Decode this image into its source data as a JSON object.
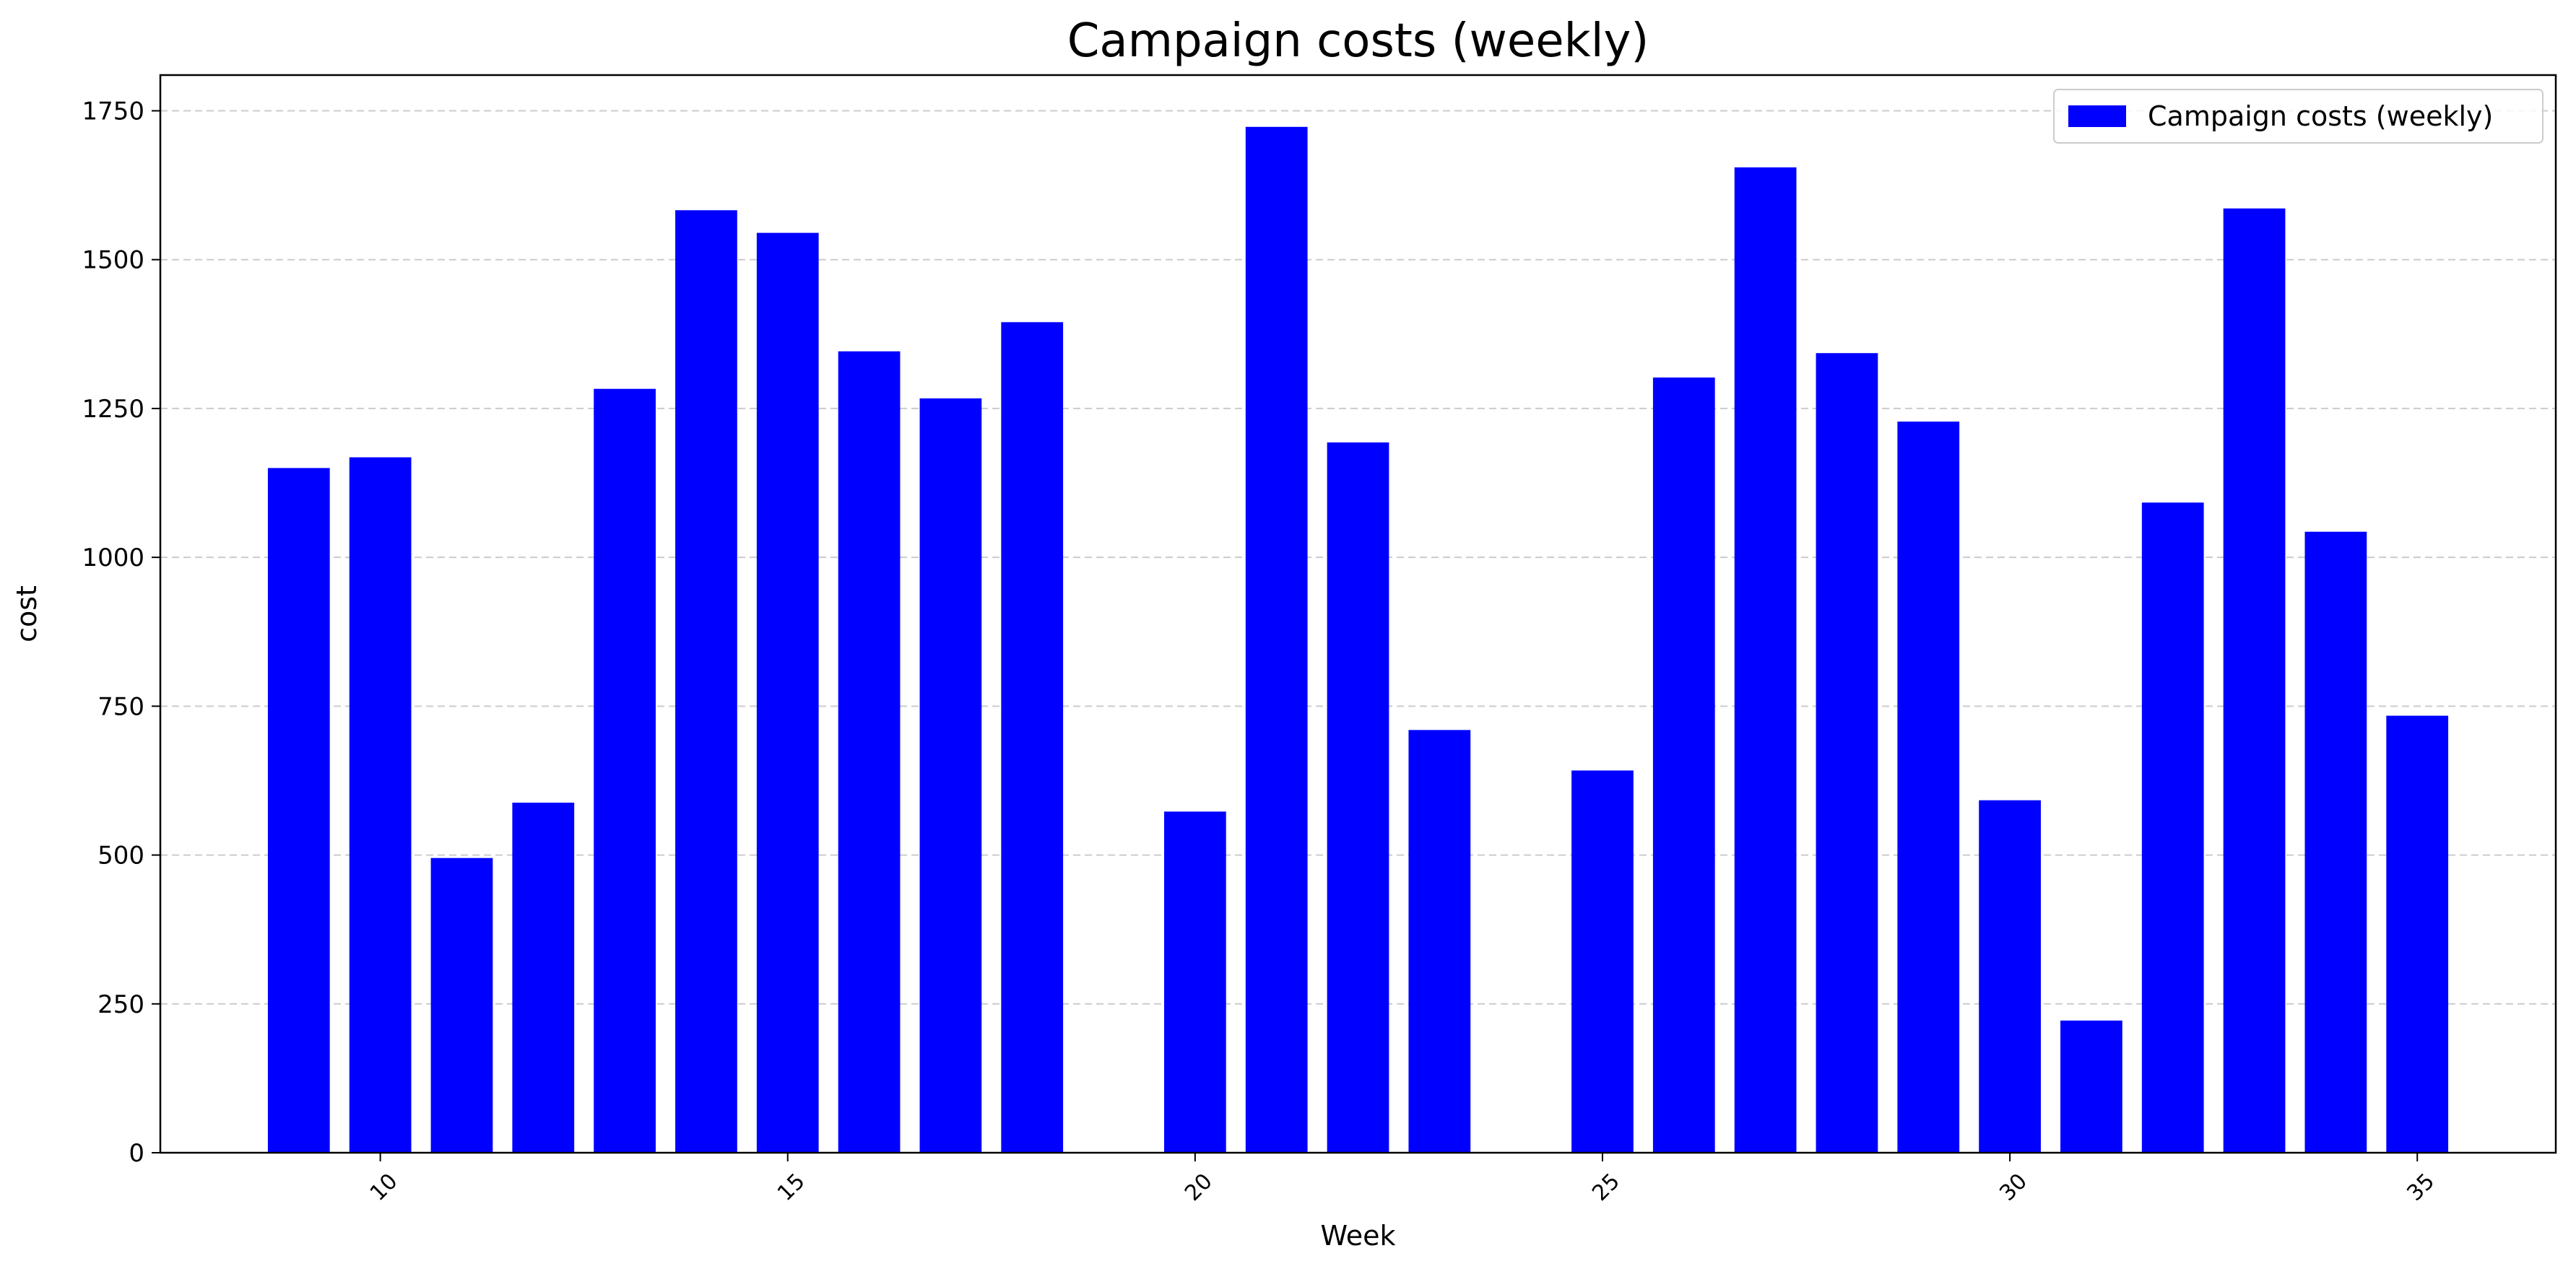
{
  "chart_data": {
    "type": "bar",
    "title": "Campaign costs (weekly)",
    "xlabel": "Week",
    "ylabel": "cost",
    "x": [
      9,
      10,
      11,
      12,
      13,
      14,
      15,
      16,
      17,
      18,
      20,
      21,
      22,
      23,
      25,
      26,
      27,
      28,
      29,
      30,
      31,
      32,
      33,
      34,
      35
    ],
    "series": [
      {
        "name": "Campaign costs (weekly)",
        "color": "#0000ff",
        "values": [
          1150,
          1168,
          495,
          588,
          1283,
          1583,
          1545,
          1346,
          1267,
          1395,
          573,
          1723,
          1193,
          710,
          642,
          1302,
          1655,
          1343,
          1228,
          592,
          222,
          1092,
          1586,
          1043,
          734
        ]
      }
    ],
    "xlim": [
      7.3,
      36.7
    ],
    "ylim": [
      0,
      1810
    ],
    "xticks": [
      10,
      15,
      20,
      25,
      30,
      35
    ],
    "yticks": [
      0,
      250,
      500,
      750,
      1000,
      1250,
      1500,
      1750
    ],
    "xtick_rotation": 45,
    "grid": "y dashed",
    "legend": "top-right"
  }
}
